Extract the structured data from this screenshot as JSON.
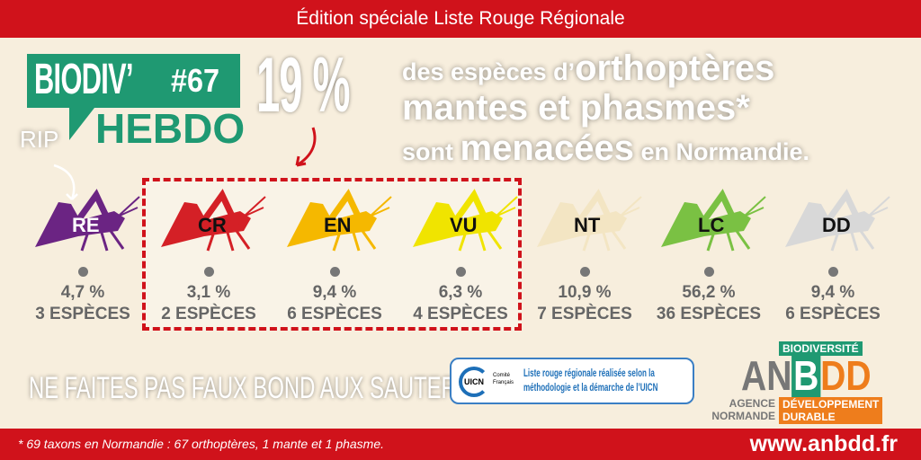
{
  "header": {
    "title": "Édition spéciale Liste Rouge Régionale"
  },
  "logo": {
    "biodiv": "BIODIV’",
    "number": "#67",
    "hebdo": "HEBDO"
  },
  "headline": {
    "percent": "19 %",
    "line1_small": "des espèces d’",
    "line1_big": "orthoptères",
    "line2": "mantes et phasmes*",
    "line3_small1": "sont ",
    "line3_big": "menacées",
    "line3_small2": " en Normandie."
  },
  "rip": "RIP",
  "categories": [
    {
      "code": "RE",
      "percent": "4,7 %",
      "count": "3 ESPÈCES",
      "color": "#6b2483"
    },
    {
      "code": "CR",
      "percent": "3,1 %",
      "count": "2 ESPÈCES",
      "color": "#d42026"
    },
    {
      "code": "EN",
      "percent": "9,4 %",
      "count": "6 ESPÈCES",
      "color": "#f5b800"
    },
    {
      "code": "VU",
      "percent": "6,3 %",
      "count": "4 ESPÈCES",
      "color": "#f0e400"
    },
    {
      "code": "NT",
      "percent": "10,9 %",
      "count": "7 ESPÈCES",
      "color": "#f3e5c3"
    },
    {
      "code": "LC",
      "percent": "56,2 %",
      "count": "36 ESPÈCES",
      "color": "#7ac143"
    },
    {
      "code": "DD",
      "percent": "9,4 %",
      "count": "6 ESPÈCES",
      "color": "#d8d8d8"
    }
  ],
  "slogan": "NE FAITES PAS FAUX BOND AUX SAUTERELLES",
  "uicn": {
    "logo": "UICN",
    "logo_sub": "Comité Français",
    "line1": "Liste rouge régionale réalisée selon la",
    "line2": "méthodologie et la démarche de l’UICN"
  },
  "anbdd": {
    "biodiversite": "BIODIVERSITÉ",
    "an": "AN",
    "b": "B",
    "dd": "DD",
    "agence": "AGENCE",
    "normande": "NORMANDE",
    "developpement": "DÉVELOPPEMENT",
    "durable": "DURABLE"
  },
  "footer": {
    "note": "* 69 taxons en Normandie : 67 orthoptères, 1 mante et 1 phasme.",
    "url": "www.anbdd.fr"
  }
}
